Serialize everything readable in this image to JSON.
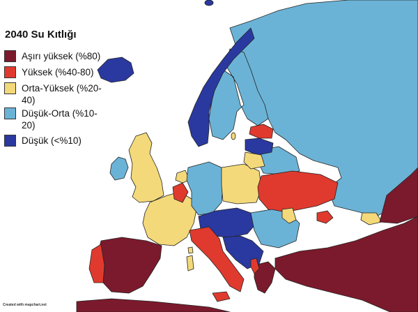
{
  "title": "2040 Su Kıtlığı",
  "legend": [
    {
      "label": "Aşırı yüksek (%80)",
      "color": "#7b1a2c"
    },
    {
      "label": "Yüksek (%40-80)",
      "color": "#e03a2e"
    },
    {
      "label": "Orta-Yüksek (%20-40)",
      "color": "#f4d97a"
    },
    {
      "label": "Düşük-Orta (%10-20)",
      "color": "#6bb3d6"
    },
    {
      "label": "Düşük (<%10)",
      "color": "#2a39a0"
    }
  ],
  "credit": "Created with mapchart.net",
  "regions": {
    "russia": "Düşük-Orta",
    "fennoscandia": "Düşük-Orta",
    "norway": "Düşük",
    "iceland": "Düşük",
    "ireland": "Düşük-Orta",
    "united_kingdom": "Orta-Yüksek",
    "france": "Orta-Yüksek",
    "spain": "Aşırı yüksek",
    "portugal": "Yüksek",
    "italy": "Yüksek",
    "germany": "Düşük-Orta",
    "poland": "Orta-Yüksek",
    "ukraine": "Yüksek",
    "belarus": "Düşük-Orta",
    "baltics": "Düşük",
    "estonia": "Yüksek",
    "balkans": "Düşük",
    "greece": "Aşırı yüksek",
    "turkey": "Aşırı yüksek",
    "north_africa": "Aşırı yüksek"
  }
}
